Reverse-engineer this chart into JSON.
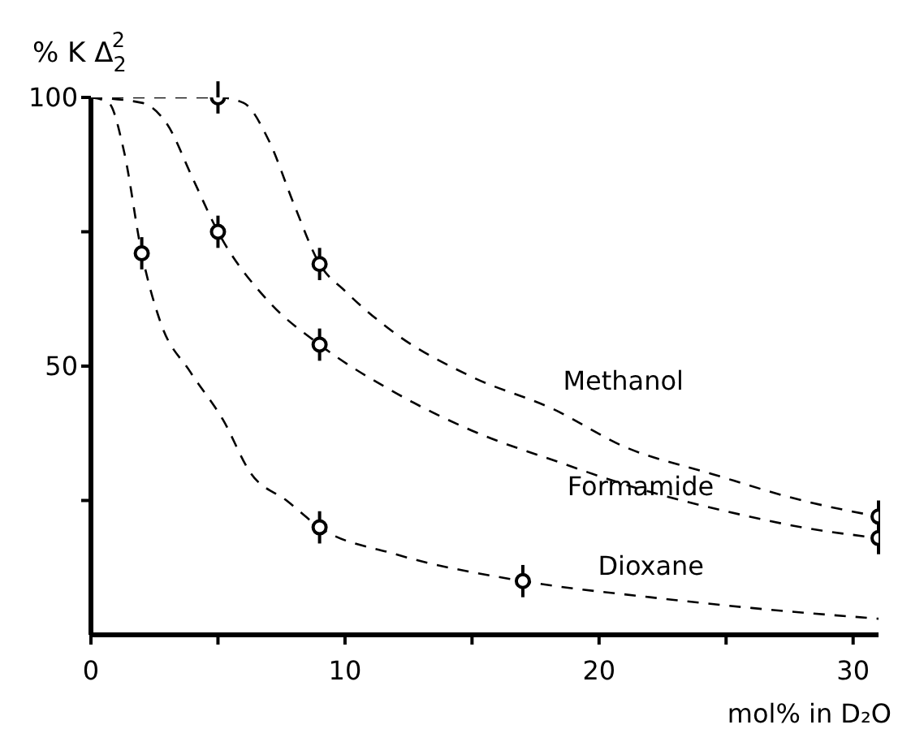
{
  "chart_data": {
    "type": "line",
    "ylabel": "% K Δ$_{2}$$^{2}$",
    "xlabel": "mol% in D₂O",
    "xlim": [
      0,
      31
    ],
    "ylim": [
      0,
      100
    ],
    "xticks": [
      0,
      {
        "value": 5,
        "label": null
      },
      10,
      {
        "value": 15,
        "label": null
      },
      20,
      {
        "value": 25,
        "label": null
      },
      30
    ],
    "yticks": [
      {
        "value": 25,
        "label": null
      },
      50,
      {
        "value": 75,
        "label": null
      },
      100
    ],
    "marker": "circle",
    "line_style": "dashed",
    "legend": false,
    "grid": false,
    "series": [
      {
        "type": "scatter",
        "color": "#000000",
        "x": [
          5,
          9,
          31
        ],
        "values": [
          100,
          69,
          22
        ],
        "errors": [
          3,
          3,
          3
        ]
      },
      {
        "type": "scatter",
        "color": "#000000",
        "x": [
          5,
          9,
          31
        ],
        "values": [
          75,
          54,
          18
        ],
        "errors": [
          3,
          3,
          3
        ]
      },
      {
        "type": "scatter",
        "color": "#000000",
        "x": [
          2,
          9,
          17
        ],
        "values": [
          71,
          20,
          10
        ],
        "errors": [
          3,
          3,
          3
        ]
      },
      {
        "marker": "none",
        "name": "Methanol",
        "color": "#000000",
        "x": [
          0,
          5,
          6,
          7,
          8,
          9,
          10,
          12,
          15,
          18.2,
          21,
          24.4,
          28,
          31
        ],
        "values": [
          100,
          100,
          99,
          92,
          80,
          69,
          64,
          56,
          48,
          42,
          35,
          30,
          25,
          22
        ]
      },
      {
        "marker": "none",
        "name": "Formamide",
        "color": "#000000",
        "x": [
          0,
          2,
          3,
          4,
          5,
          7,
          9,
          12,
          15,
          18.5,
          21,
          25,
          28,
          31
        ],
        "values": [
          100,
          99,
          95,
          85,
          75,
          62,
          54,
          45,
          38,
          32,
          28,
          23,
          20,
          18
        ]
      },
      {
        "marker": "none",
        "name": "Dioxane",
        "color": "#000000",
        "x": [
          0,
          0.7,
          1.3,
          2,
          2.75,
          3.9,
          5.2,
          6.3,
          7.7,
          9,
          12,
          17,
          22,
          26,
          31
        ],
        "values": [
          100,
          99,
          90,
          71,
          58,
          49,
          40,
          30,
          25,
          20,
          15,
          10,
          7,
          5,
          3
        ]
      }
    ]
  }
}
